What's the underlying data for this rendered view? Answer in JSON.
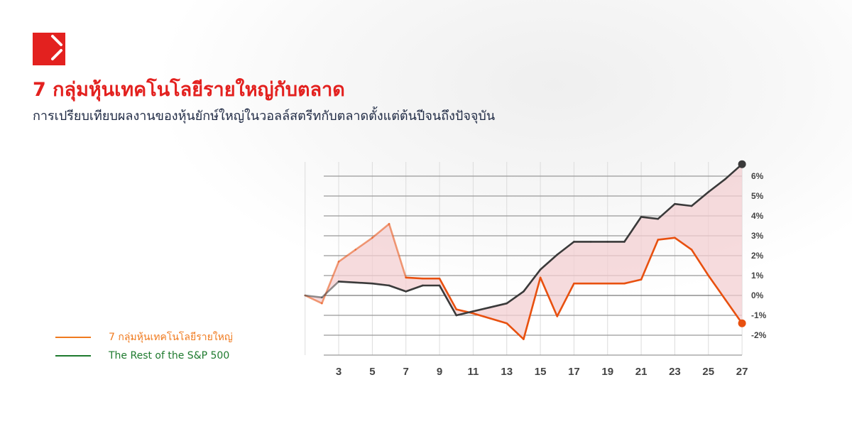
{
  "header": {
    "logo": "brand-logo",
    "title": "7 กลุ่มหุ้นเทคโนโลยีรายใหญ่กับตลาด",
    "subtitle": "การเปรียบเทียบผลงานของหุ้นยักษ์ใหญ่ในวอลล์สตรีทกับตลาดตั้งแต่ต้นปีจนถึงปัจจุบัน"
  },
  "colors": {
    "brand": "#e3211f",
    "series_tech": "#e8500f",
    "series_rest": "#3a3a3a",
    "fill": "#f3cfd2",
    "legend_tech": "#f07a1e",
    "legend_rest": "#1e7a2e"
  },
  "chart_data": {
    "type": "line",
    "x": [
      1,
      2,
      3,
      4,
      5,
      6,
      7,
      8,
      9,
      10,
      11,
      12,
      13,
      14,
      15,
      16,
      17,
      18,
      19,
      20,
      21,
      22,
      23,
      24,
      25,
      26,
      27
    ],
    "x_ticks": [
      "3",
      "5",
      "7",
      "9",
      "11",
      "13",
      "15",
      "17",
      "19",
      "21",
      "23",
      "25",
      "27"
    ],
    "y_ticks": [
      "6%",
      "5%",
      "4%",
      "3%",
      "2%",
      "1%",
      "0%",
      "-1%",
      "-2%"
    ],
    "ylim": [
      -3,
      6.5
    ],
    "grid": true,
    "legend_position": "left",
    "series": [
      {
        "name": "7 กลุ่มหุ้นเทคโนโลยีรายใหญ่",
        "values": [
          0,
          -0.4,
          1.7,
          2.3,
          2.9,
          3.6,
          0.9,
          0.85,
          0.85,
          -0.7,
          -0.9,
          -1.15,
          -1.4,
          -2.2,
          0.9,
          -1.05,
          0.6,
          0.6,
          0.6,
          0.6,
          0.8,
          2.8,
          2.9,
          2.3,
          1.0,
          -0.2,
          -1.4
        ]
      },
      {
        "name": "The Rest of the S&P 500",
        "values": [
          0,
          -0.1,
          0.7,
          0.65,
          0.6,
          0.5,
          0.2,
          0.5,
          0.5,
          -1.0,
          -0.8,
          -0.6,
          -0.4,
          0.2,
          1.3,
          2.05,
          2.7,
          2.7,
          2.7,
          2.7,
          3.95,
          3.85,
          4.6,
          4.5,
          5.2,
          5.85,
          6.6
        ]
      }
    ]
  }
}
